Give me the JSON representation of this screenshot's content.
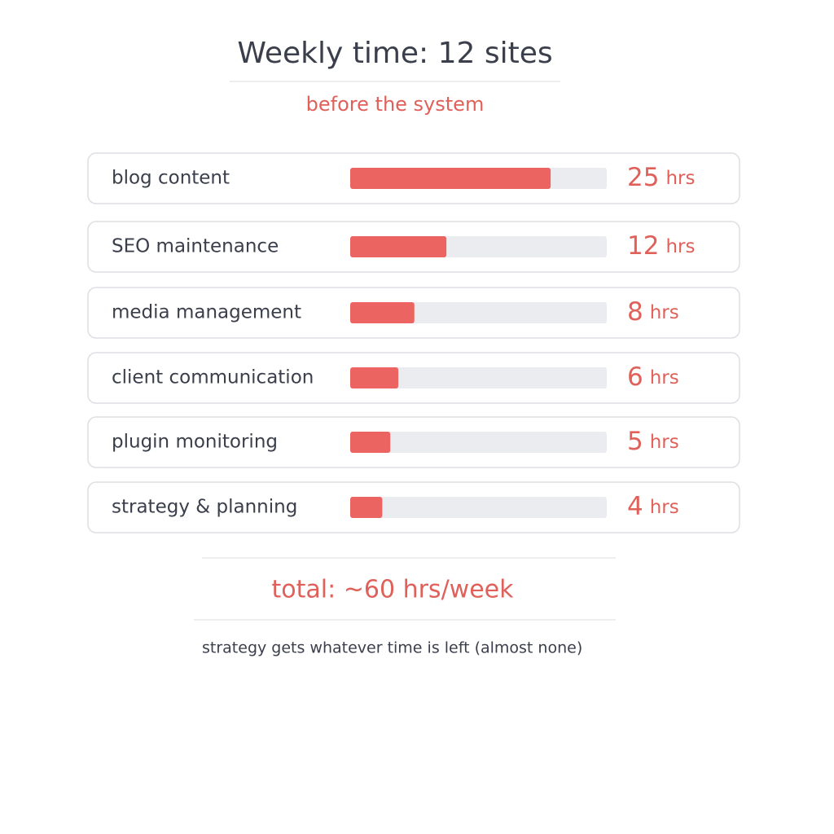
{
  "chart_data": {
    "type": "bar",
    "orientation": "horizontal",
    "title": "Weekly time: 12 sites",
    "subtitle": "before the system",
    "categories": [
      "blog content",
      "SEO maintenance",
      "media management",
      "client communication",
      "plugin monitoring",
      "strategy & planning"
    ],
    "values": [
      25,
      12,
      8,
      6,
      5,
      4
    ],
    "unit": "hrs",
    "color": "#ec6461",
    "track_color": "#ebecef",
    "xlim": [
      0,
      32
    ],
    "total": "total: ~60 hrs/week",
    "note": "strategy gets whatever time is left (almost none)"
  }
}
